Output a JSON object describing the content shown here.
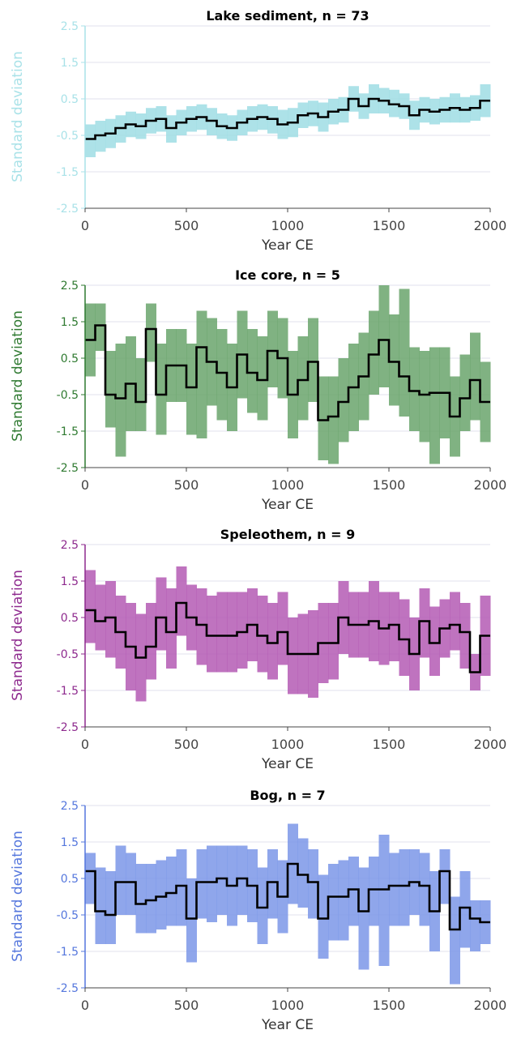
{
  "chart_data": [
    {
      "type": "area",
      "title": "Lake sediment, n = 73",
      "xlabel": "Year CE",
      "ylabel": "Standard deviation",
      "xlim": [
        0,
        2000
      ],
      "ylim": [
        -2.5,
        2.5
      ],
      "xticks": [
        "0",
        "500",
        "1000",
        "1500",
        "2000"
      ],
      "yticks": [
        "2.5",
        "1.5",
        "0.5",
        "-0.5",
        "-1.5",
        "-2.5"
      ],
      "color": "#9fdde4",
      "label_color": "#a9e2e8",
      "x": [
        0,
        50,
        100,
        150,
        200,
        250,
        300,
        350,
        400,
        450,
        500,
        550,
        600,
        650,
        700,
        750,
        800,
        850,
        900,
        950,
        1000,
        1050,
        1100,
        1150,
        1200,
        1250,
        1300,
        1350,
        1400,
        1450,
        1500,
        1550,
        1600,
        1650,
        1700,
        1750,
        1800,
        1850,
        1900,
        1950
      ],
      "mean": [
        -0.6,
        -0.5,
        -0.45,
        -0.3,
        -0.2,
        -0.25,
        -0.1,
        -0.05,
        -0.3,
        -0.15,
        -0.05,
        0.0,
        -0.1,
        -0.25,
        -0.3,
        -0.15,
        -0.05,
        0.0,
        -0.05,
        -0.2,
        -0.15,
        0.05,
        0.1,
        0.0,
        0.15,
        0.2,
        0.5,
        0.3,
        0.5,
        0.45,
        0.35,
        0.3,
        0.05,
        0.2,
        0.15,
        0.2,
        0.25,
        0.2,
        0.25,
        0.45
      ],
      "upper": [
        -0.2,
        -0.1,
        -0.05,
        0.05,
        0.15,
        0.1,
        0.25,
        0.3,
        0.05,
        0.2,
        0.3,
        0.35,
        0.25,
        0.1,
        0.05,
        0.2,
        0.3,
        0.35,
        0.3,
        0.2,
        0.25,
        0.4,
        0.45,
        0.4,
        0.5,
        0.55,
        0.85,
        0.65,
        0.9,
        0.8,
        0.75,
        0.65,
        0.45,
        0.55,
        0.5,
        0.55,
        0.65,
        0.55,
        0.6,
        0.9
      ],
      "lower": [
        -1.1,
        -0.95,
        -0.85,
        -0.7,
        -0.55,
        -0.6,
        -0.45,
        -0.4,
        -0.7,
        -0.5,
        -0.4,
        -0.35,
        -0.5,
        -0.6,
        -0.65,
        -0.5,
        -0.4,
        -0.35,
        -0.45,
        -0.6,
        -0.55,
        -0.3,
        -0.25,
        -0.4,
        -0.2,
        -0.15,
        0.15,
        -0.05,
        0.1,
        0.1,
        0.0,
        -0.05,
        -0.35,
        -0.15,
        -0.2,
        -0.15,
        -0.15,
        -0.15,
        -0.1,
        0.0
      ]
    },
    {
      "type": "area",
      "title": "Ice core, n = 5",
      "xlabel": "Year CE",
      "ylabel": "Standard deviation",
      "xlim": [
        0,
        2000
      ],
      "ylim": [
        -2.5,
        2.5
      ],
      "xticks": [
        "0",
        "500",
        "1000",
        "1500",
        "2000"
      ],
      "yticks": [
        "2.5",
        "1.5",
        "0.5",
        "-0.5",
        "-1.5",
        "-2.5"
      ],
      "color": "#6aa56c",
      "label_color": "#2f7a31",
      "x": [
        0,
        50,
        100,
        150,
        200,
        250,
        300,
        350,
        400,
        450,
        500,
        550,
        600,
        650,
        700,
        750,
        800,
        850,
        900,
        950,
        1000,
        1050,
        1100,
        1150,
        1200,
        1250,
        1300,
        1350,
        1400,
        1450,
        1500,
        1550,
        1600,
        1650,
        1700,
        1750,
        1800,
        1850,
        1900,
        1950
      ],
      "mean": [
        1.0,
        1.4,
        -0.5,
        -0.6,
        -0.2,
        -0.7,
        1.3,
        -0.5,
        0.3,
        0.3,
        -0.3,
        0.8,
        0.4,
        0.1,
        -0.3,
        0.6,
        0.1,
        -0.1,
        0.7,
        0.5,
        -0.5,
        -0.1,
        0.4,
        -1.2,
        -1.1,
        -0.7,
        -0.3,
        0.0,
        0.6,
        1.0,
        0.4,
        0.0,
        -0.4,
        -0.5,
        -0.45,
        -0.45,
        -1.1,
        -0.6,
        -0.1,
        -0.7
      ],
      "upper": [
        2.0,
        2.0,
        0.7,
        0.9,
        1.1,
        0.5,
        2.0,
        0.9,
        1.3,
        1.3,
        0.9,
        1.8,
        1.6,
        1.3,
        0.9,
        1.8,
        1.3,
        1.1,
        1.8,
        1.6,
        0.7,
        1.1,
        1.6,
        0.0,
        0.0,
        0.5,
        0.9,
        1.2,
        1.8,
        2.5,
        1.7,
        2.4,
        0.8,
        0.7,
        0.8,
        0.8,
        0.0,
        0.6,
        1.2,
        0.4
      ],
      "lower": [
        0.0,
        0.7,
        -1.4,
        -2.2,
        -1.5,
        -1.5,
        0.4,
        -1.6,
        -0.7,
        -0.7,
        -1.6,
        -1.7,
        -0.8,
        -1.2,
        -1.5,
        -0.6,
        -1.0,
        -1.2,
        -0.3,
        -0.6,
        -1.7,
        -1.2,
        -0.7,
        -2.3,
        -2.4,
        -1.8,
        -1.5,
        -1.2,
        -0.5,
        -0.3,
        -0.8,
        -1.1,
        -1.5,
        -1.8,
        -2.4,
        -1.7,
        -2.2,
        -1.5,
        -1.2,
        -1.8
      ]
    },
    {
      "type": "area",
      "title": "Speleothem, n = 9",
      "xlabel": "Year CE",
      "ylabel": "Standard deviation",
      "xlim": [
        0,
        2000
      ],
      "ylim": [
        -2.5,
        2.5
      ],
      "xticks": [
        "0",
        "500",
        "1000",
        "1500",
        "2000"
      ],
      "yticks": [
        "2.5",
        "1.5",
        "0.5",
        "-0.5",
        "-1.5",
        "-2.5"
      ],
      "color": "#b45ab4",
      "label_color": "#8e2a8e",
      "x": [
        0,
        50,
        100,
        150,
        200,
        250,
        300,
        350,
        400,
        450,
        500,
        550,
        600,
        650,
        700,
        750,
        800,
        850,
        900,
        950,
        1000,
        1050,
        1100,
        1150,
        1200,
        1250,
        1300,
        1350,
        1400,
        1450,
        1500,
        1550,
        1600,
        1650,
        1700,
        1750,
        1800,
        1850,
        1900,
        1950
      ],
      "mean": [
        0.7,
        0.4,
        0.5,
        0.1,
        -0.3,
        -0.6,
        -0.3,
        0.5,
        0.1,
        0.9,
        0.5,
        0.3,
        0.0,
        0.0,
        0.0,
        0.1,
        0.3,
        0.0,
        -0.2,
        0.1,
        -0.5,
        -0.5,
        -0.5,
        -0.2,
        -0.2,
        0.5,
        0.3,
        0.3,
        0.4,
        0.2,
        0.3,
        -0.1,
        -0.5,
        0.4,
        -0.2,
        0.2,
        0.3,
        0.1,
        -1.0,
        0.0
      ],
      "upper": [
        1.8,
        1.4,
        1.5,
        1.1,
        0.9,
        0.6,
        0.9,
        1.6,
        1.3,
        1.9,
        1.4,
        1.3,
        1.1,
        1.2,
        1.2,
        1.2,
        1.3,
        1.1,
        0.9,
        1.2,
        0.5,
        0.6,
        0.7,
        0.9,
        0.9,
        1.5,
        1.2,
        1.2,
        1.5,
        1.2,
        1.2,
        1.0,
        0.5,
        1.3,
        0.8,
        1.0,
        1.2,
        0.9,
        -0.5,
        1.1
      ],
      "lower": [
        -0.2,
        -0.4,
        -0.6,
        -0.9,
        -1.5,
        -1.8,
        -1.2,
        -0.4,
        -0.9,
        0.0,
        -0.4,
        -0.8,
        -1.0,
        -1.0,
        -1.0,
        -0.9,
        -0.7,
        -1.0,
        -1.2,
        -0.8,
        -1.6,
        -1.6,
        -1.7,
        -1.3,
        -1.2,
        -0.5,
        -0.6,
        -0.6,
        -0.7,
        -0.8,
        -0.7,
        -1.1,
        -1.5,
        -0.6,
        -1.1,
        -0.6,
        -0.4,
        -0.9,
        -1.5,
        -1.1
      ]
    },
    {
      "type": "area",
      "title": "Bog, n = 7",
      "xlabel": "Year CE",
      "ylabel": "Standard deviation",
      "xlim": [
        0,
        2000
      ],
      "ylim": [
        -2.5,
        2.5
      ],
      "xticks": [
        "0",
        "500",
        "1000",
        "1500",
        "2000"
      ],
      "yticks": [
        "2.5",
        "1.5",
        "0.5",
        "-0.5",
        "-1.5",
        "-2.5"
      ],
      "color": "#7b96e8",
      "label_color": "#5577dd",
      "x": [
        0,
        50,
        100,
        150,
        200,
        250,
        300,
        350,
        400,
        450,
        500,
        550,
        600,
        650,
        700,
        750,
        800,
        850,
        900,
        950,
        1000,
        1050,
        1100,
        1150,
        1200,
        1250,
        1300,
        1350,
        1400,
        1450,
        1500,
        1550,
        1600,
        1650,
        1700,
        1750,
        1800,
        1850,
        1900,
        1950
      ],
      "mean": [
        0.7,
        -0.4,
        -0.5,
        0.4,
        0.4,
        -0.2,
        -0.1,
        0.0,
        0.1,
        0.3,
        -0.6,
        0.4,
        0.4,
        0.5,
        0.3,
        0.5,
        0.3,
        -0.3,
        0.4,
        0.0,
        0.9,
        0.6,
        0.4,
        -0.6,
        0.0,
        0.0,
        0.2,
        -0.4,
        0.2,
        0.2,
        0.3,
        0.3,
        0.4,
        0.3,
        -0.4,
        0.7,
        -0.9,
        -0.3,
        -0.6,
        -0.7
      ],
      "upper": [
        1.2,
        0.8,
        0.7,
        1.4,
        1.2,
        0.9,
        0.9,
        1.0,
        1.1,
        1.3,
        0.5,
        1.3,
        1.4,
        1.4,
        1.4,
        1.4,
        1.3,
        0.8,
        1.3,
        1.0,
        2.0,
        1.6,
        1.3,
        0.6,
        0.9,
        1.0,
        1.1,
        0.8,
        1.1,
        1.7,
        1.2,
        1.3,
        1.3,
        1.2,
        0.7,
        1.3,
        0.0,
        0.7,
        -0.1,
        -0.1
      ],
      "lower": [
        -0.2,
        -1.3,
        -1.3,
        -0.5,
        -0.5,
        -1.0,
        -1.0,
        -0.9,
        -0.8,
        -0.8,
        -1.8,
        -0.6,
        -0.7,
        -0.5,
        -0.8,
        -0.5,
        -0.7,
        -1.3,
        -0.6,
        -1.0,
        -0.2,
        -0.3,
        -0.6,
        -1.7,
        -1.2,
        -1.2,
        -0.8,
        -2.0,
        -0.8,
        -1.9,
        -0.8,
        -0.8,
        -0.5,
        -0.8,
        -1.5,
        -0.2,
        -2.4,
        -1.4,
        -1.5,
        -1.3
      ]
    }
  ]
}
